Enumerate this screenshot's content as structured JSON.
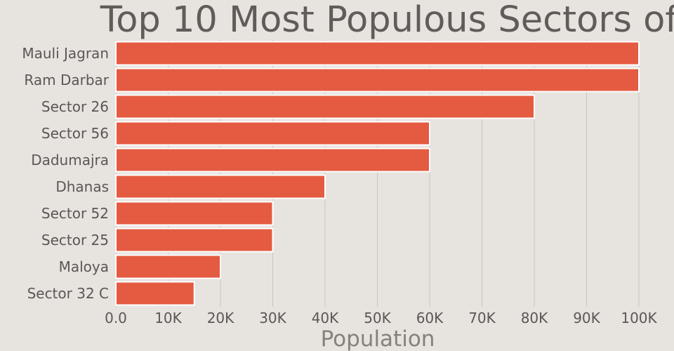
{
  "chart_data": {
    "type": "bar",
    "orientation": "horizontal",
    "title": "Top 10 Most Populous Sectors of",
    "xlabel": "Population",
    "ylabel": "",
    "categories": [
      "Mauli Jagran",
      "Ram Darbar",
      "Sector 26",
      "Sector 56",
      "Dadumajra",
      "Dhanas",
      "Sector 52",
      "Sector 25",
      "Maloya",
      "Sector 32 C"
    ],
    "values": [
      100000,
      100000,
      80000,
      60000,
      60000,
      40000,
      30000,
      30000,
      20000,
      15000
    ],
    "xlim": [
      0,
      100000
    ],
    "x_ticks": [
      "0.0",
      "10K",
      "20K",
      "30K",
      "40K",
      "50K",
      "60K",
      "70K",
      "80K",
      "90K",
      "100K"
    ],
    "grid": "vertical",
    "legend": "none",
    "bar_color": "#e45b41",
    "background_color": "#e7e3df",
    "gridline_color": "#c8c4c0"
  }
}
